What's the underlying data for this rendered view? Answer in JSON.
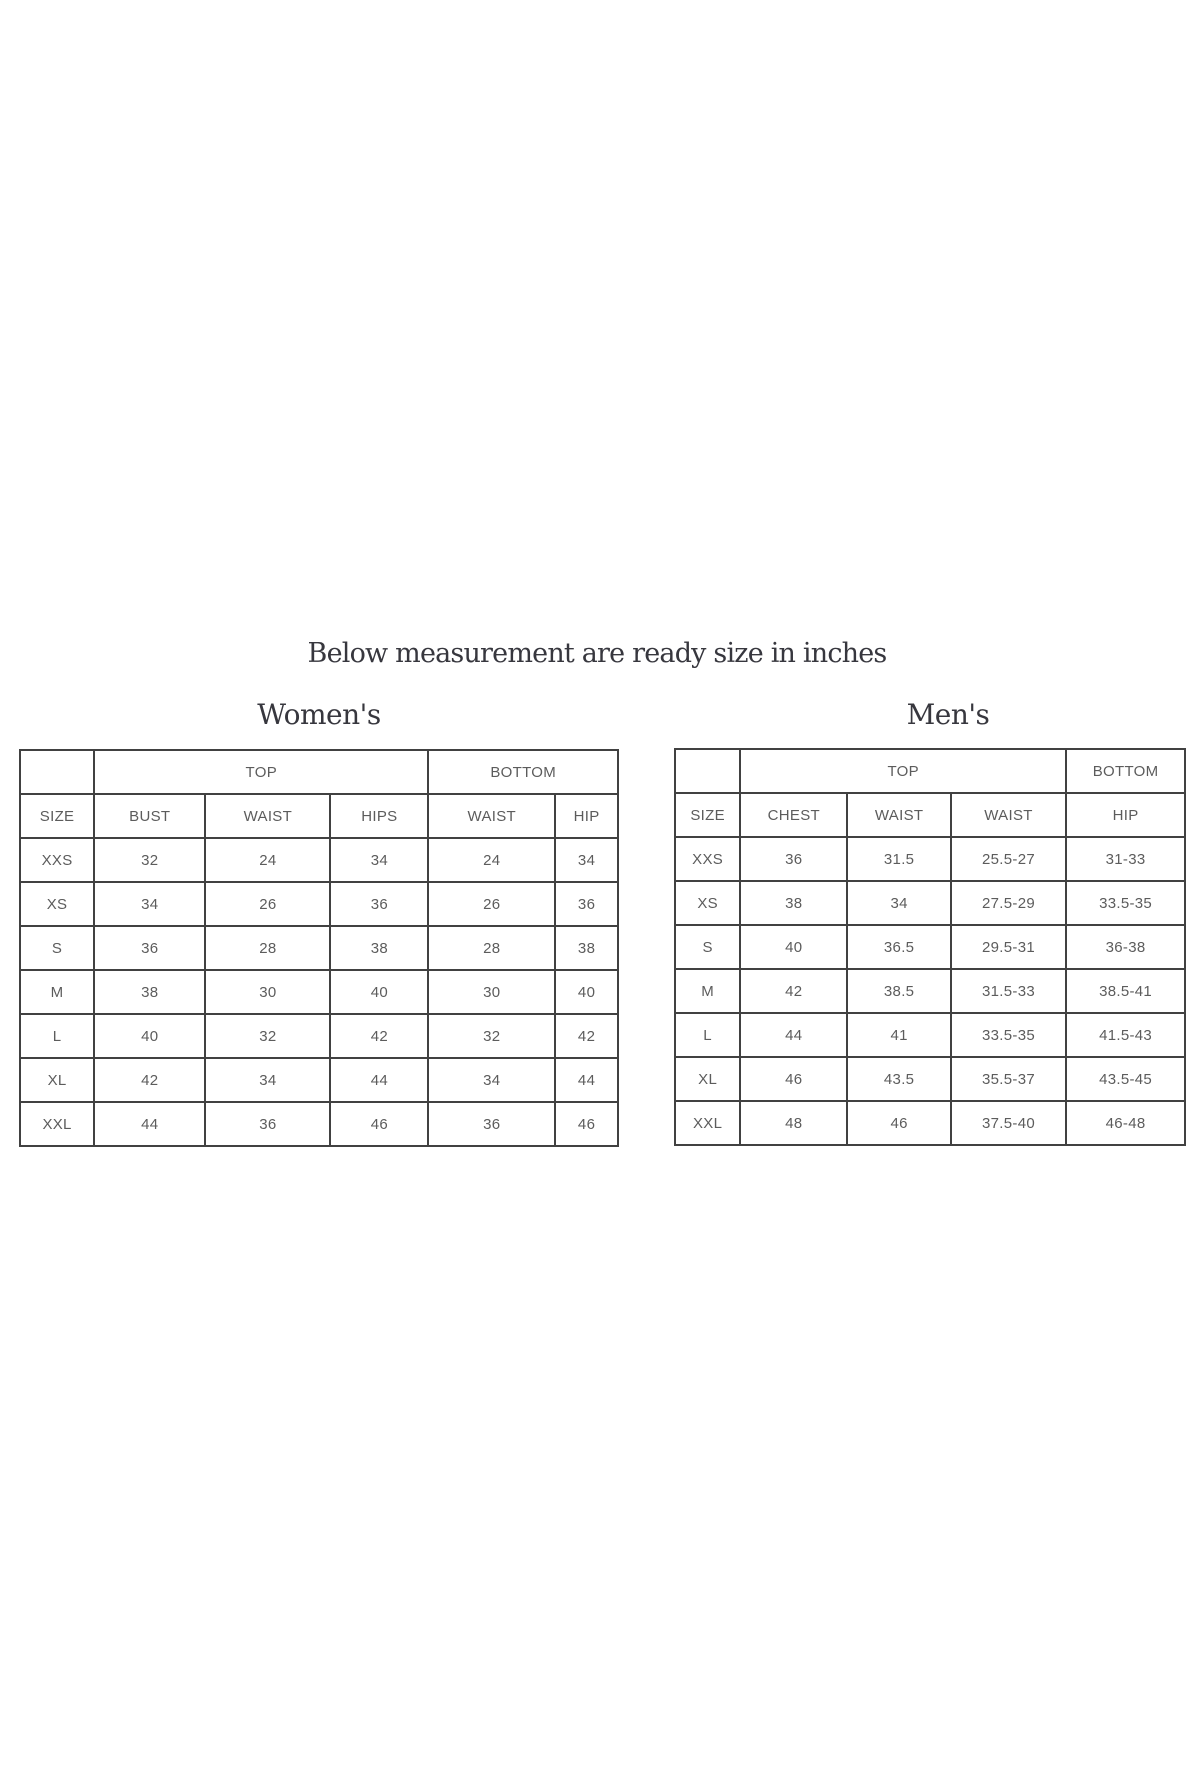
{
  "title": "Below measurement are ready size in inches",
  "colors": {
    "border": "#414141",
    "table_text": "#5c5c5c",
    "heading_text": "#37373e",
    "page_background": "#ffffff"
  },
  "women": {
    "heading": "Women's",
    "group_headers": {
      "top": "TOP",
      "bottom": "BOTTOM"
    },
    "columns": [
      "SIZE",
      "BUST",
      "WAIST",
      "HIPS",
      "WAIST",
      "HIP"
    ],
    "rows": [
      [
        "XXS",
        "32",
        "24",
        "34",
        "24",
        "34"
      ],
      [
        "XS",
        "34",
        "26",
        "36",
        "26",
        "36"
      ],
      [
        "S",
        "36",
        "28",
        "38",
        "28",
        "38"
      ],
      [
        "M",
        "38",
        "30",
        "40",
        "30",
        "40"
      ],
      [
        "L",
        "40",
        "32",
        "42",
        "32",
        "42"
      ],
      [
        "XL",
        "42",
        "34",
        "44",
        "34",
        "44"
      ],
      [
        "XXL",
        "44",
        "36",
        "46",
        "36",
        "46"
      ]
    ]
  },
  "men": {
    "heading": "Men's",
    "group_headers": {
      "top": "TOP",
      "bottom": "BOTTOM"
    },
    "columns": [
      "SIZE",
      "CHEST",
      "WAIST",
      "WAIST",
      "HIP"
    ],
    "rows": [
      [
        "XXS",
        "36",
        "31.5",
        "25.5-27",
        "31-33"
      ],
      [
        "XS",
        "38",
        "34",
        "27.5-29",
        "33.5-35"
      ],
      [
        "S",
        "40",
        "36.5",
        "29.5-31",
        "36-38"
      ],
      [
        "M",
        "42",
        "38.5",
        "31.5-33",
        "38.5-41"
      ],
      [
        "L",
        "44",
        "41",
        "33.5-35",
        "41.5-43"
      ],
      [
        "XL",
        "46",
        "43.5",
        "35.5-37",
        "43.5-45"
      ],
      [
        "XXL",
        "48",
        "46",
        "37.5-40",
        "46-48"
      ]
    ]
  }
}
